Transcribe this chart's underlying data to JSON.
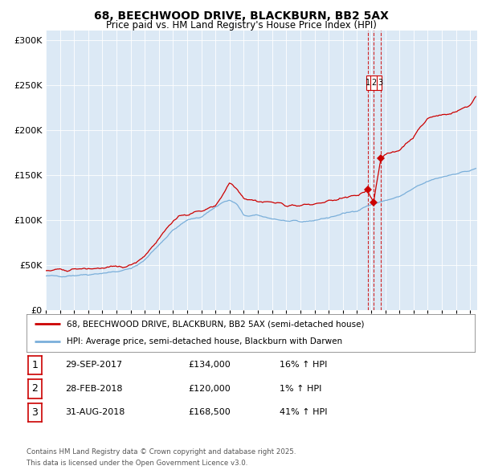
{
  "title": "68, BEECHWOOD DRIVE, BLACKBURN, BB2 5AX",
  "subtitle": "Price paid vs. HM Land Registry's House Price Index (HPI)",
  "legend_red": "68, BEECHWOOD DRIVE, BLACKBURN, BB2 5AX (semi-detached house)",
  "legend_blue": "HPI: Average price, semi-detached house, Blackburn with Darwen",
  "footer_line1": "Contains HM Land Registry data © Crown copyright and database right 2025.",
  "footer_line2": "This data is licensed under the Open Government Licence v3.0.",
  "transactions": [
    {
      "num": "1",
      "date": "29-SEP-2017",
      "price": "£134,000",
      "hpi_change": "16% ↑ HPI",
      "x_year": 2017.75,
      "price_val": 134000
    },
    {
      "num": "2",
      "date": "28-FEB-2018",
      "price": "£120,000",
      "hpi_change": "1% ↑ HPI",
      "x_year": 2018.17,
      "price_val": 120000
    },
    {
      "num": "3",
      "date": "31-AUG-2018",
      "price": "£168,500",
      "hpi_change": "41% ↑ HPI",
      "x_year": 2018.67,
      "price_val": 168500
    }
  ],
  "red_color": "#cc0000",
  "blue_color": "#7aafda",
  "plot_bg": "#dce9f5",
  "ylim": [
    0,
    310000
  ],
  "xlim_start": 1995.0,
  "xlim_end": 2025.5,
  "blue_anchors": [
    [
      1995.0,
      38000
    ],
    [
      1996.0,
      38200
    ],
    [
      1997.0,
      39000
    ],
    [
      1998.0,
      40000
    ],
    [
      1999.0,
      41500
    ],
    [
      2000.0,
      43000
    ],
    [
      2001.0,
      46000
    ],
    [
      2002.0,
      56000
    ],
    [
      2003.0,
      73000
    ],
    [
      2004.0,
      89000
    ],
    [
      2005.0,
      100000
    ],
    [
      2006.0,
      104000
    ],
    [
      2007.5,
      120000
    ],
    [
      2008.0,
      122000
    ],
    [
      2008.5,
      118000
    ],
    [
      2009.0,
      105000
    ],
    [
      2010.0,
      105000
    ],
    [
      2011.0,
      102000
    ],
    [
      2012.0,
      99000
    ],
    [
      2013.0,
      98000
    ],
    [
      2014.0,
      100000
    ],
    [
      2015.0,
      103000
    ],
    [
      2016.0,
      107000
    ],
    [
      2017.0,
      111000
    ],
    [
      2017.75,
      116000
    ],
    [
      2018.17,
      118000
    ],
    [
      2018.67,
      120000
    ],
    [
      2019.0,
      122000
    ],
    [
      2020.0,
      126000
    ],
    [
      2021.0,
      135000
    ],
    [
      2022.0,
      143000
    ],
    [
      2023.0,
      148000
    ],
    [
      2024.0,
      152000
    ],
    [
      2025.0,
      155000
    ],
    [
      2025.4,
      157000
    ]
  ],
  "red_anchors": [
    [
      1995.0,
      44000
    ],
    [
      1996.0,
      44500
    ],
    [
      1997.0,
      45500
    ],
    [
      1998.0,
      46500
    ],
    [
      1999.0,
      47000
    ],
    [
      2000.0,
      47500
    ],
    [
      2001.0,
      50000
    ],
    [
      2002.0,
      61000
    ],
    [
      2003.0,
      80000
    ],
    [
      2004.0,
      100000
    ],
    [
      2005.0,
      107000
    ],
    [
      2006.0,
      110000
    ],
    [
      2007.0,
      117000
    ],
    [
      2007.5,
      128000
    ],
    [
      2008.0,
      142000
    ],
    [
      2008.5,
      136000
    ],
    [
      2009.0,
      125000
    ],
    [
      2010.0,
      121000
    ],
    [
      2011.0,
      120000
    ],
    [
      2012.0,
      117000
    ],
    [
      2013.0,
      116000
    ],
    [
      2014.0,
      118000
    ],
    [
      2015.0,
      121000
    ],
    [
      2016.0,
      124000
    ],
    [
      2017.0,
      127000
    ],
    [
      2017.75,
      134000
    ],
    [
      2018.17,
      120000
    ],
    [
      2018.67,
      168500
    ],
    [
      2019.0,
      172000
    ],
    [
      2020.0,
      178000
    ],
    [
      2021.0,
      193000
    ],
    [
      2022.0,
      213000
    ],
    [
      2023.0,
      217000
    ],
    [
      2024.0,
      220000
    ],
    [
      2025.0,
      228000
    ],
    [
      2025.4,
      237000
    ]
  ]
}
